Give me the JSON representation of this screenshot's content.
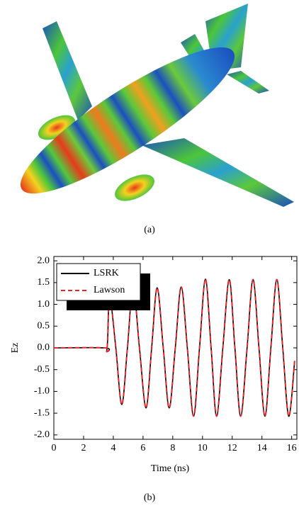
{
  "panel_a": {
    "caption": "(a)"
  },
  "chart_data": {
    "type": "line",
    "caption": "(b)",
    "x_label": "Time (ns)",
    "y_label": "Ez",
    "x": [
      0,
      3.45,
      3.55,
      3.62,
      3.76,
      4.17,
      4.57,
      4.95,
      5.33,
      5.76,
      6.2,
      6.58,
      6.95,
      7.36,
      7.76,
      8.17,
      8.57,
      8.98,
      9.4,
      9.8,
      10.2,
      10.58,
      10.95,
      11.37,
      11.8,
      12.18,
      12.57,
      13.0,
      13.4,
      13.8,
      14.2,
      14.6,
      15.0,
      15.4,
      15.8,
      16.2
    ],
    "series": [
      {
        "name": "LSRK",
        "color": "#000000",
        "dashed": false,
        "values": [
          0,
          0,
          -0.08,
          0.2,
          1.2,
          0,
          -1.3,
          0,
          1.4,
          0,
          -1.38,
          0,
          1.38,
          0,
          -1.38,
          0,
          1.4,
          0,
          -1.57,
          0,
          1.58,
          0,
          -1.57,
          0,
          1.57,
          0,
          -1.57,
          0,
          1.57,
          0,
          -1.57,
          0,
          1.57,
          0,
          -1.57,
          -0.3
        ]
      },
      {
        "name": "Lawson",
        "color": "#e8262a",
        "dashed": true,
        "values": [
          0,
          0,
          -0.08,
          0.2,
          1.2,
          0,
          -1.3,
          0,
          1.4,
          0,
          -1.38,
          0,
          1.38,
          0,
          -1.38,
          0,
          1.4,
          0,
          -1.57,
          0,
          1.58,
          0,
          -1.57,
          0,
          1.57,
          0,
          -1.57,
          0,
          1.57,
          0,
          -1.57,
          0,
          1.57,
          0,
          -1.57,
          -0.3
        ]
      }
    ],
    "xlim": [
      0,
      16.35
    ],
    "xticks": [
      0,
      2,
      4,
      6,
      8,
      10,
      12,
      14,
      16
    ],
    "ylim": [
      -2.1,
      2.1
    ],
    "yticks": [
      {
        "value": -2,
        "label": "-2.0"
      },
      {
        "value": -1.5,
        "label": "-1.5"
      },
      {
        "value": -1,
        "label": "-1.0"
      },
      {
        "value": -0.5,
        "label": "-0.5"
      },
      {
        "value": 0,
        "label": "0.0"
      },
      {
        "value": 0.5,
        "label": "0.5"
      },
      {
        "value": 1,
        "label": "1.0"
      },
      {
        "value": 1.5,
        "label": "1.5"
      },
      {
        "value": 2,
        "label": "2.0"
      }
    ],
    "legend": "upper-left",
    "grid": false
  }
}
